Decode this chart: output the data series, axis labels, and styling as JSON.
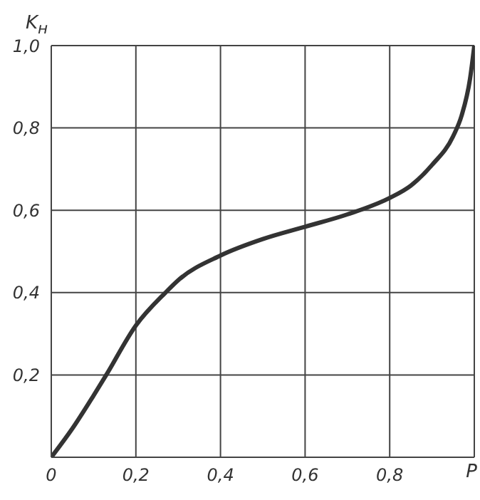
{
  "chart_data": {
    "type": "line",
    "xlabel": "P",
    "ylabel": "K$_{н}$",
    "x": [
      0,
      0.05,
      0.1,
      0.13,
      0.2,
      0.27,
      0.3,
      0.4,
      0.5,
      0.6,
      0.7,
      0.8,
      0.85,
      0.9,
      0.95,
      0.97,
      0.99,
      1.0
    ],
    "series": [
      {
        "color": "#333333",
        "values": [
          0,
          0.07,
          0.15,
          0.2,
          0.32,
          0.4,
          0.43,
          0.49,
          0.53,
          0.56,
          0.59,
          0.63,
          0.66,
          0.71,
          0.78,
          0.83,
          0.92,
          1.0
        ]
      }
    ],
    "xlim": [
      0,
      1
    ],
    "ylim": [
      0,
      1
    ],
    "xticks": [
      {
        "value": 0,
        "label": "0"
      },
      {
        "value": 0.2,
        "label": "0,2"
      },
      {
        "value": 0.4,
        "label": "0,4"
      },
      {
        "value": 0.6,
        "label": "0,6"
      },
      {
        "value": 0.8,
        "label": "0,8"
      },
      {
        "value": 1,
        "label": null
      }
    ],
    "yticks": [
      {
        "value": 0,
        "label": null
      },
      {
        "value": 0.2,
        "label": "0,2"
      },
      {
        "value": 0.4,
        "label": "0,4"
      },
      {
        "value": 0.6,
        "label": "0,6"
      },
      {
        "value": 0.8,
        "label": "0,8"
      },
      {
        "value": 1,
        "label": "1,0"
      }
    ],
    "grid": true,
    "marker": "none",
    "line_style": "solid"
  }
}
